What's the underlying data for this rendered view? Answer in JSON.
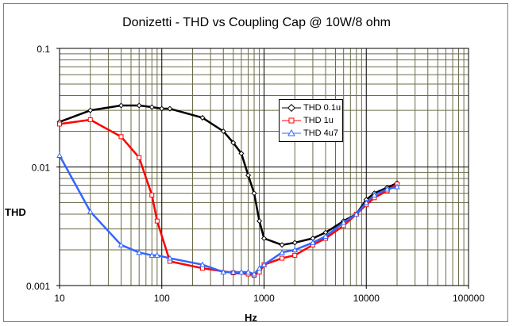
{
  "chart_data": {
    "type": "line",
    "title": "Donizetti - THD vs Coupling Cap @ 10W/8 ohm",
    "xlabel": "Hz",
    "ylabel": "THD",
    "xscale": "log",
    "yscale": "log",
    "xlim": [
      10,
      100000
    ],
    "ylim": [
      0.001,
      0.1
    ],
    "xticks": [
      "10",
      "100",
      "1000",
      "10000",
      "100000"
    ],
    "yticks": [
      "0.1",
      "0.01",
      "0.001"
    ],
    "grid": true,
    "legend_position": "center-right",
    "series": [
      {
        "name": "THD 0.1u",
        "color": "#000000",
        "marker": "diamond",
        "x": [
          10,
          20,
          40,
          60,
          80,
          100,
          120,
          250,
          400,
          500,
          600,
          700,
          800,
          900,
          1000,
          1500,
          2000,
          3000,
          4000,
          6000,
          8000,
          10000,
          12000,
          16000,
          20000
        ],
        "y": [
          0.024,
          0.03,
          0.033,
          0.033,
          0.032,
          0.031,
          0.031,
          0.026,
          0.02,
          0.016,
          0.013,
          0.0085,
          0.006,
          0.0035,
          0.0025,
          0.0022,
          0.0023,
          0.0025,
          0.0028,
          0.0035,
          0.004,
          0.0053,
          0.006,
          0.0067,
          0.0073
        ]
      },
      {
        "name": "THD 1u",
        "color": "#ff0000",
        "marker": "square",
        "x": [
          10,
          20,
          40,
          60,
          80,
          90,
          120,
          250,
          500,
          700,
          800,
          900,
          1000,
          1500,
          2000,
          3000,
          4000,
          6000,
          8000,
          10000,
          12000,
          16000,
          20000
        ],
        "y": [
          0.023,
          0.025,
          0.018,
          0.012,
          0.0058,
          0.0035,
          0.0016,
          0.0014,
          0.00128,
          0.00125,
          0.00122,
          0.0013,
          0.0015,
          0.0017,
          0.0018,
          0.0022,
          0.0025,
          0.0032,
          0.004,
          0.0048,
          0.0055,
          0.0063,
          0.0072
        ]
      },
      {
        "name": "THD 4u7",
        "color": "#3366ff",
        "marker": "triangle",
        "x": [
          10,
          20,
          40,
          60,
          80,
          90,
          120,
          250,
          400,
          500,
          600,
          700,
          800,
          900,
          1000,
          1500,
          2000,
          3000,
          4000,
          6000,
          8000,
          10000,
          12000,
          16000,
          20000
        ],
        "y": [
          0.0125,
          0.0042,
          0.0022,
          0.0019,
          0.0018,
          0.0018,
          0.0017,
          0.0015,
          0.0013,
          0.0013,
          0.0013,
          0.0013,
          0.00125,
          0.0014,
          0.0015,
          0.0019,
          0.002,
          0.0023,
          0.0026,
          0.0034,
          0.004,
          0.005,
          0.0058,
          0.0065,
          0.0068
        ]
      }
    ]
  }
}
